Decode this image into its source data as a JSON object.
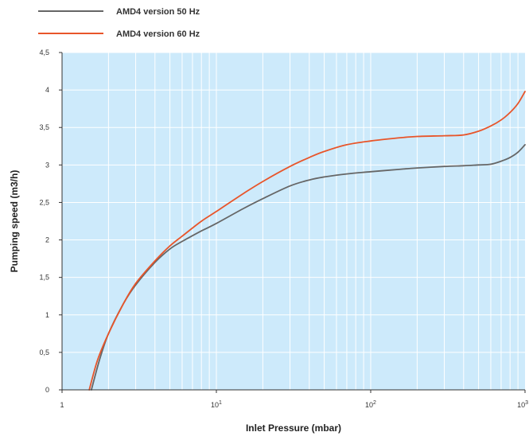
{
  "chart_data": {
    "type": "line",
    "xlabel": "Inlet Pressure (mbar)",
    "ylabel": "Pumping speed (m3/h)",
    "xscale": "log",
    "xlim": [
      1,
      1000
    ],
    "ylim": [
      0,
      4.5
    ],
    "grid": true,
    "legend_position": "top-left",
    "background_color": "#cdeafb",
    "grid_color": "#ffffff",
    "x_ticks": [
      {
        "value": 1,
        "base": "1",
        "exp": ""
      },
      {
        "value": 10,
        "base": "10",
        "exp": "1"
      },
      {
        "value": 100,
        "base": "10",
        "exp": "2"
      },
      {
        "value": 1000,
        "base": "10",
        "exp": "3"
      }
    ],
    "y_ticks": [
      {
        "value": 0,
        "label": "0"
      },
      {
        "value": 0.5,
        "label": "0,5"
      },
      {
        "value": 1,
        "label": "1"
      },
      {
        "value": 1.5,
        "label": "1,5"
      },
      {
        "value": 2,
        "label": "2"
      },
      {
        "value": 2.5,
        "label": "2,5"
      },
      {
        "value": 3,
        "label": "3"
      },
      {
        "value": 3.5,
        "label": "3,5"
      },
      {
        "value": 4,
        "label": "4"
      },
      {
        "value": 4.5,
        "label": "4,5"
      }
    ],
    "series": [
      {
        "name": "AMD4 version 50 Hz",
        "color": "#666666",
        "points": [
          [
            1.55,
            0
          ],
          [
            1.75,
            0.4
          ],
          [
            2,
            0.75
          ],
          [
            2.5,
            1.15
          ],
          [
            3,
            1.4
          ],
          [
            4,
            1.7
          ],
          [
            5,
            1.88
          ],
          [
            6,
            1.98
          ],
          [
            8,
            2.12
          ],
          [
            10,
            2.22
          ],
          [
            15,
            2.42
          ],
          [
            20,
            2.55
          ],
          [
            30,
            2.72
          ],
          [
            40,
            2.8
          ],
          [
            50,
            2.84
          ],
          [
            70,
            2.88
          ],
          [
            100,
            2.91
          ],
          [
            150,
            2.94
          ],
          [
            200,
            2.96
          ],
          [
            300,
            2.98
          ],
          [
            400,
            2.99
          ],
          [
            500,
            3.0
          ],
          [
            600,
            3.01
          ],
          [
            700,
            3.05
          ],
          [
            800,
            3.1
          ],
          [
            900,
            3.17
          ],
          [
            1000,
            3.27
          ]
        ]
      },
      {
        "name": "AMD4 version 60 Hz",
        "color": "#e8552a",
        "points": [
          [
            1.5,
            0
          ],
          [
            1.7,
            0.4
          ],
          [
            2,
            0.75
          ],
          [
            2.5,
            1.15
          ],
          [
            3,
            1.42
          ],
          [
            4,
            1.72
          ],
          [
            5,
            1.92
          ],
          [
            6,
            2.05
          ],
          [
            8,
            2.25
          ],
          [
            10,
            2.38
          ],
          [
            15,
            2.62
          ],
          [
            20,
            2.78
          ],
          [
            30,
            2.98
          ],
          [
            40,
            3.1
          ],
          [
            50,
            3.18
          ],
          [
            70,
            3.27
          ],
          [
            100,
            3.32
          ],
          [
            150,
            3.36
          ],
          [
            200,
            3.38
          ],
          [
            300,
            3.39
          ],
          [
            400,
            3.4
          ],
          [
            500,
            3.45
          ],
          [
            600,
            3.52
          ],
          [
            700,
            3.6
          ],
          [
            800,
            3.7
          ],
          [
            900,
            3.82
          ],
          [
            1000,
            3.98
          ]
        ]
      }
    ]
  }
}
